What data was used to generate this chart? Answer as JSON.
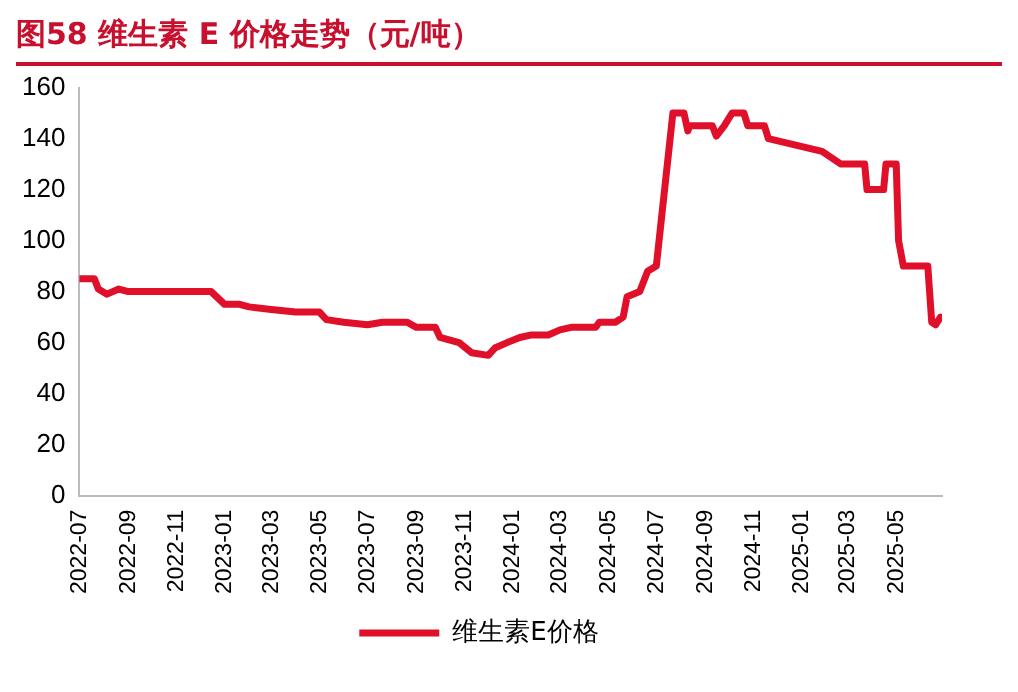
{
  "chart_data": {
    "type": "line",
    "title": "图58  维生素 E 价格走势（元/吨）",
    "x": [
      "2022-07-01",
      "2022-07-20",
      "2022-07-25",
      "2022-08-05",
      "2022-08-20",
      "2022-09-01",
      "2022-12-15",
      "2023-01-01",
      "2023-01-20",
      "2023-02-01",
      "2023-03-01",
      "2023-04-01",
      "2023-05-01",
      "2023-05-10",
      "2023-06-01",
      "2023-07-01",
      "2023-07-20",
      "2023-08-20",
      "2023-09-01",
      "2023-09-25",
      "2023-10-01",
      "2023-10-25",
      "2023-11-10",
      "2023-12-01",
      "2023-12-10",
      "2023-12-25",
      "2024-01-10",
      "2024-01-25",
      "2024-02-15",
      "2024-03-01",
      "2024-03-15",
      "2024-04-15",
      "2024-04-20",
      "2024-05-10",
      "2024-05-20",
      "2024-05-25",
      "2024-06-10",
      "2024-06-20",
      "2024-07-01",
      "2024-07-22",
      "2024-08-05",
      "2024-08-10",
      "2024-08-12",
      "2024-09-10",
      "2024-09-15",
      "2024-09-25",
      "2024-10-05",
      "2024-10-20",
      "2024-10-25",
      "2024-11-15",
      "2024-11-20",
      "2025-01-27",
      "2025-02-20",
      "2025-03-22",
      "2025-03-25",
      "2025-04-15",
      "2025-04-18",
      "2025-05-01",
      "2025-05-04",
      "2025-05-10",
      "2025-06-10",
      "2025-06-15",
      "2025-06-20",
      "2025-06-26"
    ],
    "series": [
      {
        "name": "维生素E价格",
        "color": "#e0102a",
        "values": [
          85,
          85,
          81,
          79,
          81,
          80,
          80,
          75,
          75,
          74,
          73,
          72,
          72,
          69,
          68,
          67,
          68,
          68,
          66,
          66,
          62,
          60,
          56,
          55,
          58,
          60,
          62,
          63,
          63,
          65,
          66,
          66,
          68,
          68,
          70,
          78,
          80,
          88,
          90,
          150,
          150,
          143,
          145,
          145,
          141,
          145,
          150,
          150,
          145,
          145,
          140,
          135,
          130,
          130,
          120,
          120,
          130,
          130,
          100,
          90,
          90,
          68,
          67,
          70
        ]
      }
    ],
    "xlim": [
      "2022-07-01",
      "2025-06-28"
    ],
    "xticks": [
      "2022-07",
      "2022-09",
      "2022-11",
      "2023-01",
      "2023-03",
      "2023-05",
      "2023-07",
      "2023-09",
      "2023-11",
      "2024-01",
      "2024-03",
      "2024-05",
      "2024-07",
      "2024-09",
      "2024-11",
      "2025-01",
      "2025-03",
      "2025-05"
    ],
    "ylim": [
      0,
      160
    ],
    "yticks": [
      0,
      20,
      40,
      60,
      80,
      100,
      120,
      140,
      160
    ],
    "grid": false,
    "legend": "bottom",
    "marker": "none",
    "line_style": "solid"
  }
}
